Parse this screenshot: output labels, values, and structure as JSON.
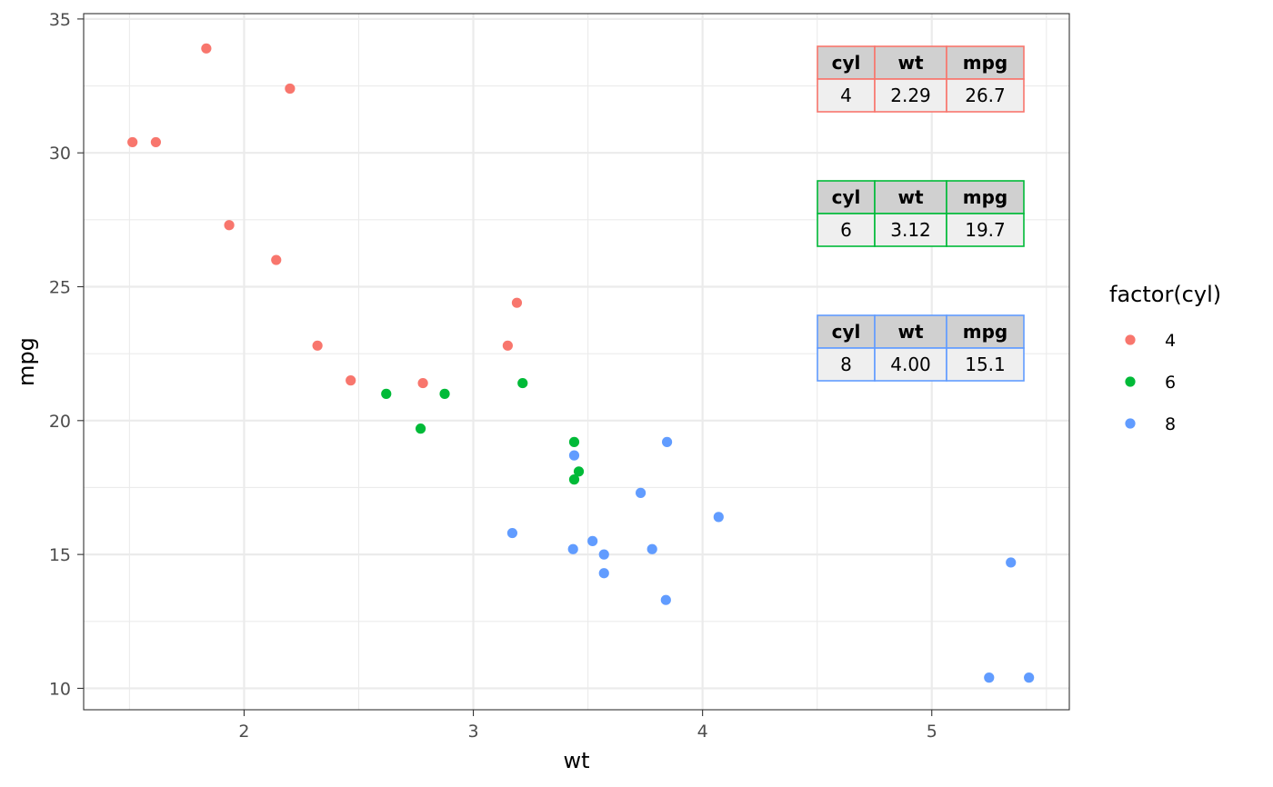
{
  "chart_data": {
    "type": "scatter",
    "title": "",
    "xlabel": "wt",
    "ylabel": "mpg",
    "xlim": [
      1.3,
      5.6
    ],
    "ylim": [
      9.2,
      35.2
    ],
    "x_ticks": [
      2,
      3,
      4,
      5
    ],
    "y_ticks": [
      10,
      15,
      20,
      25,
      30,
      35
    ],
    "grid": true,
    "legend": {
      "title": "factor(cyl)",
      "position": "right",
      "entries": [
        {
          "label": "4",
          "color": "#F8766D"
        },
        {
          "label": "6",
          "color": "#00BA38"
        },
        {
          "label": "8",
          "color": "#619CFF"
        }
      ]
    },
    "series": [
      {
        "name": "4",
        "color": "#F8766D",
        "x": [
          2.32,
          3.19,
          3.15,
          2.2,
          1.615,
          1.835,
          2.465,
          1.935,
          2.14,
          1.513,
          2.78
        ],
        "y": [
          22.8,
          24.4,
          22.8,
          32.4,
          30.4,
          33.9,
          21.5,
          27.3,
          26.0,
          30.4,
          21.4
        ]
      },
      {
        "name": "6",
        "color": "#00BA38",
        "x": [
          2.62,
          2.875,
          3.215,
          3.46,
          3.44,
          3.44,
          2.77
        ],
        "y": [
          21.0,
          21.0,
          21.4,
          18.1,
          19.2,
          17.8,
          19.7
        ]
      },
      {
        "name": "8",
        "color": "#619CFF",
        "x": [
          3.44,
          3.57,
          4.07,
          3.73,
          3.78,
          5.25,
          5.424,
          5.345,
          3.52,
          3.435,
          3.84,
          3.845,
          3.17,
          3.57
        ],
        "y": [
          18.7,
          14.3,
          16.4,
          17.3,
          15.2,
          10.4,
          10.4,
          14.7,
          15.5,
          15.2,
          13.3,
          19.2,
          15.8,
          15.0
        ]
      }
    ],
    "annotation_tables": [
      {
        "border_color": "#F8766D",
        "headers": [
          "cyl",
          "wt",
          "mpg"
        ],
        "row": [
          "4",
          "2.29",
          "26.7"
        ]
      },
      {
        "border_color": "#00BA38",
        "headers": [
          "cyl",
          "wt",
          "mpg"
        ],
        "row": [
          "6",
          "3.12",
          "19.7"
        ]
      },
      {
        "border_color": "#619CFF",
        "headers": [
          "cyl",
          "wt",
          "mpg"
        ],
        "row": [
          "8",
          "4.00",
          "15.1"
        ]
      }
    ]
  }
}
